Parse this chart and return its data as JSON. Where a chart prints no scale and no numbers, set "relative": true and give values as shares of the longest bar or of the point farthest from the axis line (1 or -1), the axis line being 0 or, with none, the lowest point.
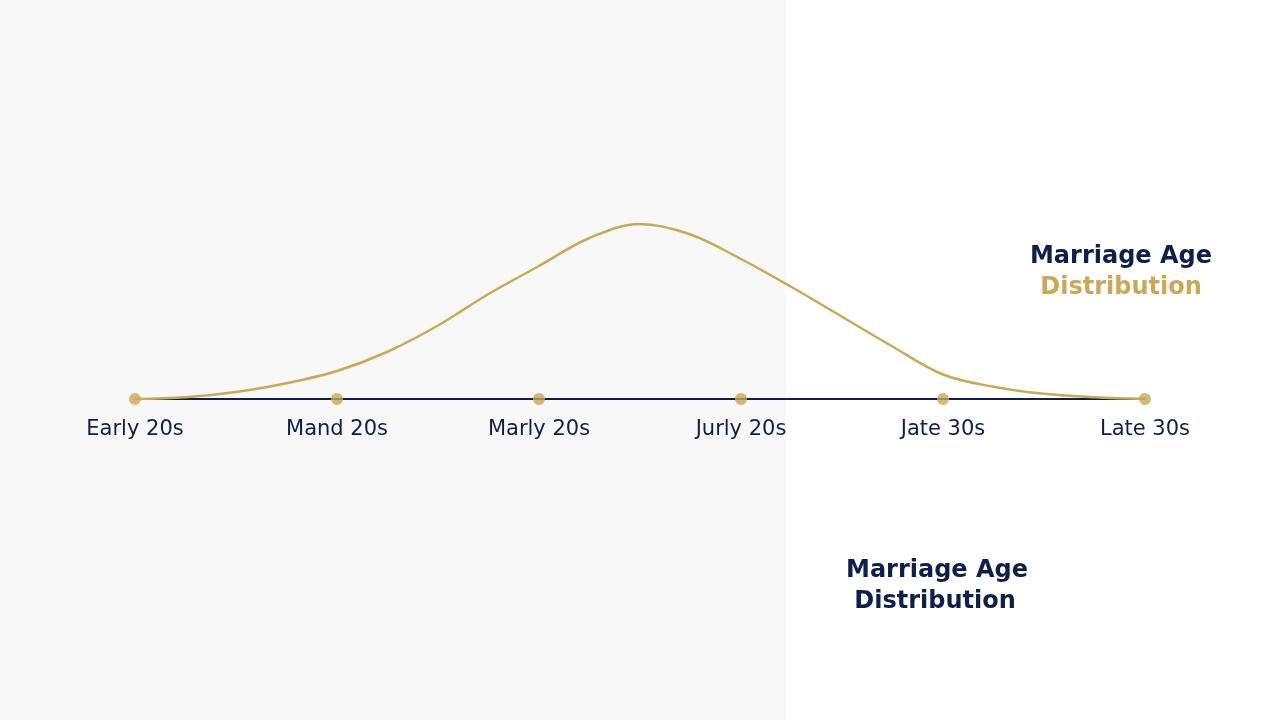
{
  "chart_data": {
    "type": "line",
    "title": "Marriage Age Distribution",
    "annotations": [
      "Marriage Age Distribution"
    ],
    "relative": true,
    "categories": [
      "Early 20s",
      null,
      null,
      null,
      "Mand 20s",
      null,
      null,
      null,
      "Marly 20s",
      null,
      null,
      null,
      "Jurly 20s",
      null,
      null,
      null,
      "Jate 30s",
      null,
      null,
      null,
      "Late 30s"
    ],
    "line_style": "solid",
    "series": [
      {
        "color": "#c9a85c",
        "values": [
          0,
          0.01,
          0.04,
          0.09,
          0.16,
          0.27,
          0.42,
          0.6,
          0.76,
          0.92,
          1,
          0.94,
          0.8,
          0.64,
          0.47,
          0.3,
          0.14,
          0.07,
          0.03,
          0.01,
          0
        ]
      },
      {
        "type": "scatter",
        "color": "#c9a85c",
        "marker": "circle",
        "values": [
          0,
          null,
          null,
          null,
          0,
          null,
          null,
          null,
          0,
          null,
          null,
          null,
          0,
          null,
          null,
          null,
          0,
          null,
          null,
          null,
          0
        ]
      }
    ]
  }
}
